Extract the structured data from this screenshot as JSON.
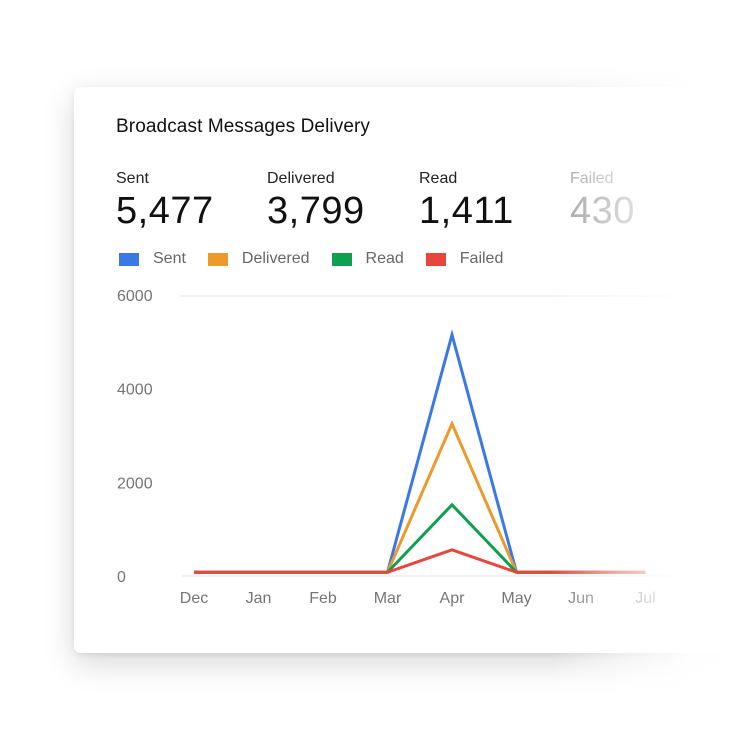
{
  "card": {
    "title": "Broadcast Messages Delivery"
  },
  "stats": [
    {
      "label": "Sent",
      "value": "5,477"
    },
    {
      "label": "Delivered",
      "value": "3,799"
    },
    {
      "label": "Read",
      "value": "1,411"
    },
    {
      "label": "Failed",
      "value": "430"
    }
  ],
  "colors": {
    "sent": "#3b78e7",
    "delivered": "#ec9a2c",
    "read": "#0fa04f",
    "failed": "#e8453c"
  },
  "chart_data": {
    "type": "line",
    "x": [
      "Dec",
      "Jan",
      "Feb",
      "Mar",
      "Apr",
      "May",
      "Jun",
      "Jul"
    ],
    "yticks": [
      "0",
      "2000",
      "4000",
      "6000"
    ],
    "ylim": [
      0,
      6000
    ],
    "grid": true,
    "legend_position": "top",
    "series": [
      {
        "name": "Sent",
        "color": "#3b78e7",
        "values": [
          80,
          80,
          80,
          80,
          5150,
          80,
          80,
          80
        ]
      },
      {
        "name": "Delivered",
        "color": "#ec9a2c",
        "values": [
          80,
          80,
          80,
          80,
          3250,
          80,
          80,
          80
        ]
      },
      {
        "name": "Read",
        "color": "#0fa04f",
        "values": [
          80,
          80,
          80,
          80,
          1520,
          80,
          80,
          80
        ]
      },
      {
        "name": "Failed",
        "color": "#e8453c",
        "values": [
          80,
          80,
          80,
          80,
          560,
          80,
          80,
          80
        ]
      }
    ]
  }
}
